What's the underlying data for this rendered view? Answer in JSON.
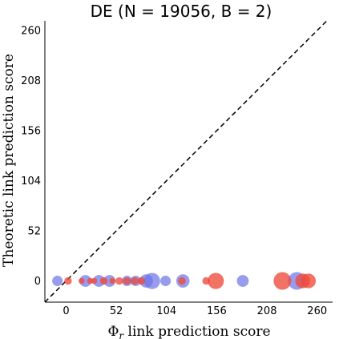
{
  "chart_data": {
    "type": "scatter",
    "title": "DE (N = 19056, B = 2)",
    "xlabel_prefix": "Φ",
    "xlabel_sub": "r",
    "xlabel_suffix": " link prediction score",
    "ylabel": "Theoretic link prediction score",
    "xlim": [
      -22,
      276
    ],
    "ylim": [
      -22,
      270
    ],
    "xticks": [
      0,
      52,
      104,
      156,
      208,
      260
    ],
    "yticks": [
      0,
      52,
      104,
      156,
      208,
      260
    ],
    "grid": false,
    "legend": "none",
    "reference_line": "dashed diagonal y = x",
    "colors": {
      "blue": "#6b72e8",
      "red": "#ee4a3a",
      "diagonal": "#000000"
    },
    "series": [
      {
        "color": "blue",
        "points": [
          {
            "x": -9,
            "y": 0,
            "size": 5
          },
          {
            "x": 20,
            "y": 0,
            "size": 6
          },
          {
            "x": 34,
            "y": 0,
            "size": 6
          },
          {
            "x": 45,
            "y": 0,
            "size": 6
          },
          {
            "x": 63,
            "y": 0,
            "size": 5
          },
          {
            "x": 72,
            "y": 0,
            "size": 5
          },
          {
            "x": 83,
            "y": 0,
            "size": 7
          },
          {
            "x": 89,
            "y": 0,
            "size": 9
          },
          {
            "x": 103,
            "y": 0,
            "size": 5
          },
          {
            "x": 121,
            "y": 0,
            "size": 7
          },
          {
            "x": 183,
            "y": 0,
            "size": 6
          },
          {
            "x": 239,
            "y": 0,
            "size": 10
          }
        ]
      },
      {
        "color": "red",
        "points": [
          {
            "x": 2,
            "y": 0,
            "size": 3
          },
          {
            "x": 16,
            "y": 0,
            "size": 2
          },
          {
            "x": 25,
            "y": 0,
            "size": 2
          },
          {
            "x": 29,
            "y": 0,
            "size": 2
          },
          {
            "x": 39,
            "y": 0,
            "size": 3
          },
          {
            "x": 48,
            "y": 0,
            "size": 2
          },
          {
            "x": 55,
            "y": 0,
            "size": 3
          },
          {
            "x": 63,
            "y": 0,
            "size": 3
          },
          {
            "x": 71,
            "y": 0,
            "size": 3
          },
          {
            "x": 78,
            "y": 0,
            "size": 3
          },
          {
            "x": 120,
            "y": 0,
            "size": 3
          },
          {
            "x": 145,
            "y": 0,
            "size": 3
          },
          {
            "x": 155,
            "y": 0,
            "size": 9
          },
          {
            "x": 224,
            "y": 0,
            "size": 10
          },
          {
            "x": 245,
            "y": 0,
            "size": 8
          },
          {
            "x": 251,
            "y": 0,
            "size": 8
          }
        ]
      }
    ]
  }
}
